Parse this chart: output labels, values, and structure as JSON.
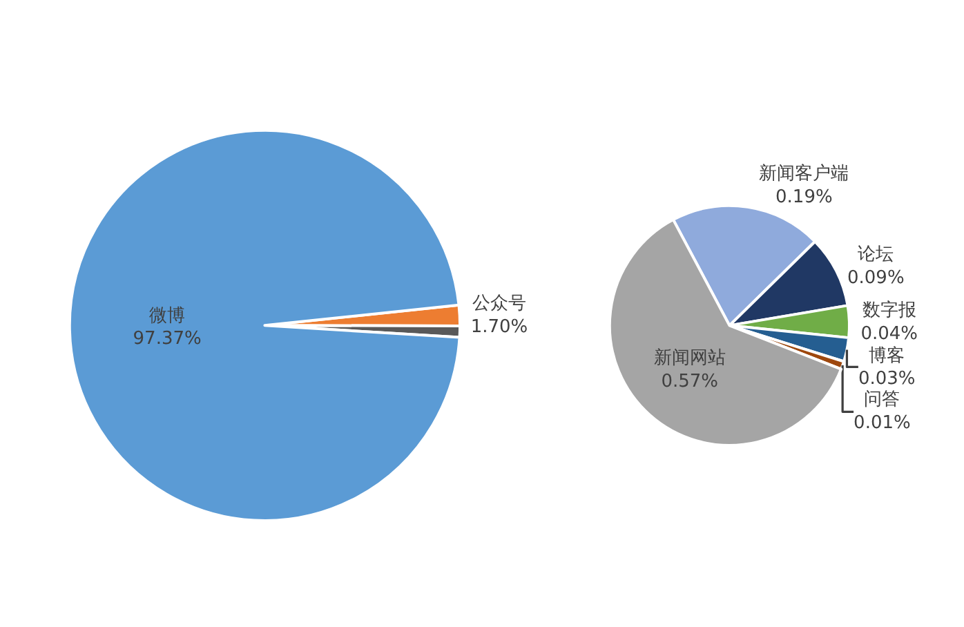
{
  "chart_data": [
    {
      "type": "pie",
      "categories": [
        "公众号",
        null,
        "微博"
      ],
      "values": [
        1.7,
        0.93,
        97.37
      ],
      "colors": [
        "#ed7d31",
        "#595959",
        "#5b9bd5"
      ],
      "value_labels": [
        "1.70%",
        null,
        "97.37%"
      ]
    },
    {
      "type": "pie",
      "categories": [
        "新闻客户端",
        "论坛",
        "数字报",
        "博客",
        "问答",
        "新闻网站"
      ],
      "values": [
        0.19,
        0.09,
        0.04,
        0.03,
        0.01,
        0.57
      ],
      "colors": [
        "#8faadc",
        "#203864",
        "#70ad47",
        "#255e91",
        "#9e480e",
        "#a5a5a5"
      ],
      "value_labels": [
        "0.19%",
        "0.09%",
        "0.04%",
        "0.03%",
        "0.01%",
        "0.57%"
      ]
    }
  ]
}
